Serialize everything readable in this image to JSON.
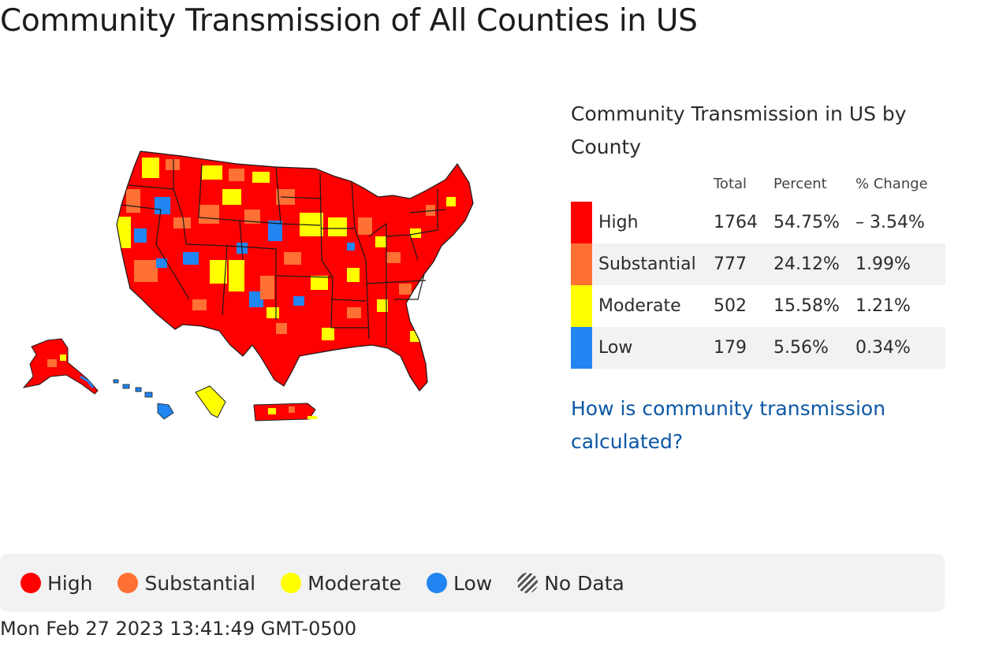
{
  "title": "Community Transmission of All Counties in US",
  "colors": {
    "high": "#ff0000",
    "substantial": "#ff7034",
    "moderate": "#ffff00",
    "low": "#2186f2",
    "state_border": "#1a1a1a",
    "link": "#0b57a4"
  },
  "panel": {
    "title": "Community Transmission in US by County",
    "columns": [
      "Total",
      "Percent",
      "% Change"
    ],
    "rows": [
      {
        "level": "High",
        "total": "1764",
        "percent": "54.75%",
        "change": "– 3.54%",
        "color": "#ff0000"
      },
      {
        "level": "Substantial",
        "total": "777",
        "percent": "24.12%",
        "change": "1.99%",
        "color": "#ff7034"
      },
      {
        "level": "Moderate",
        "total": "502",
        "percent": "15.58%",
        "change": "1.21%",
        "color": "#ffff00"
      },
      {
        "level": "Low",
        "total": "179",
        "percent": "5.56%",
        "change": "0.34%",
        "color": "#2186f2"
      }
    ],
    "link": "How is community transmission calculated?"
  },
  "legend": {
    "items": [
      {
        "label": "High",
        "color": "#ff0000"
      },
      {
        "label": "Substantial",
        "color": "#ff7034"
      },
      {
        "label": "Moderate",
        "color": "#ffff00"
      },
      {
        "label": "Low",
        "color": "#2186f2"
      }
    ],
    "no_data": "No Data"
  },
  "timestamp": "Mon Feb 27 2023 13:41:49 GMT-0500"
}
